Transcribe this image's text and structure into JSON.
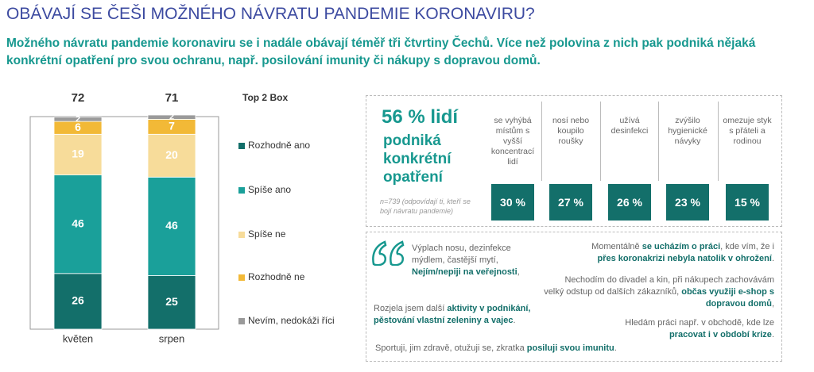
{
  "header": {
    "title": "OBÁVAJÍ SE ČEŠI MOŽNÉHO NÁVRATU PANDEMIE KORONAVIRU?",
    "subtitle": "Možného návratu pandemie koronaviru se i nadále obávají téměř tři čtvrtiny Čechů. Více než polovina z nich pak podniká nějaká konkrétní opatření pro svou ochranu, např. posilování imunity či nákupy s dopravou domů."
  },
  "chart_data": {
    "type": "stacked_bar",
    "categories": [
      "květen",
      "srpen"
    ],
    "ylim": [
      0,
      100
    ],
    "top2box": {
      "label": "Top 2 Box",
      "values": [
        72,
        71
      ]
    },
    "series": [
      {
        "name": "Rozhodně ano",
        "color": "#136f6a",
        "label_color": "#ffffff",
        "values": [
          26,
          25
        ]
      },
      {
        "name": "Spíše ano",
        "color": "#1aa09a",
        "label_color": "#ffffff",
        "values": [
          46,
          46
        ]
      },
      {
        "name": "Spíše ne",
        "color": "#f7dc9a",
        "label_color": "#ffffff",
        "values": [
          19,
          20
        ]
      },
      {
        "name": "Rozhodně ne",
        "color": "#f2b937",
        "label_color": "#ffffff",
        "values": [
          6,
          7
        ]
      },
      {
        "name": "Nevím, nedokáži říci",
        "color": "#9a9a9a",
        "label_color": "#ffffff",
        "values": [
          2,
          2
        ]
      }
    ]
  },
  "measures": {
    "headline": "56 % lidí",
    "headline_text": "podniká konkrétní opatření",
    "note": "n=739 (odpovídají ti, kteří se bojí návratu pandemie)",
    "items": [
      {
        "label": "se vyhýbá místům s vyšší koncentrací lidí",
        "value": "30 %"
      },
      {
        "label": "nosí nebo koupilo roušky",
        "value": "27 %"
      },
      {
        "label": "užívá desinfekci",
        "value": "26 %"
      },
      {
        "label": "zvýšilo hygienické návyky",
        "value": "23 %"
      },
      {
        "label": "omezuje styk s přáteli a rodinou",
        "value": "15 %"
      }
    ]
  },
  "quotes": [
    [
      {
        "text": "Výplach nosu, dezinfekce mýdlem, častější mytí, "
      },
      {
        "text": "Nejím/nepiji na veřejnosti",
        "strong": true
      },
      {
        "text": ","
      }
    ],
    [
      {
        "text": "Momentálně "
      },
      {
        "text": "se ucházím o práci",
        "strong": true
      },
      {
        "text": ", kde vím, že i "
      },
      {
        "text": "přes koronakrizi nebyla natolik v ohrožení",
        "strong": true
      },
      {
        "text": "."
      }
    ],
    [
      {
        "text": "Nechodím do divadel a kin, při nákupech zachovávám velký odstup od dalších zákazníků, "
      },
      {
        "text": "občas využiji e-shop s dopravou domů",
        "strong": true
      },
      {
        "text": ","
      }
    ],
    [
      {
        "text": "Rozjela jsem další "
      },
      {
        "text": "aktivity v podnikání, pěstování vlastní zeleniny a vajec",
        "strong": true
      },
      {
        "text": "."
      }
    ],
    [
      {
        "text": "Hledám práci např. v obchodě, kde lze "
      },
      {
        "text": "pracovat i v období krize",
        "strong": true
      },
      {
        "text": "."
      }
    ],
    [
      {
        "text": "Sportuji, jim zdravě, otužuji se, zkratka "
      },
      {
        "text": "posiluji svou imunitu",
        "strong": true
      },
      {
        "text": "."
      }
    ]
  ]
}
